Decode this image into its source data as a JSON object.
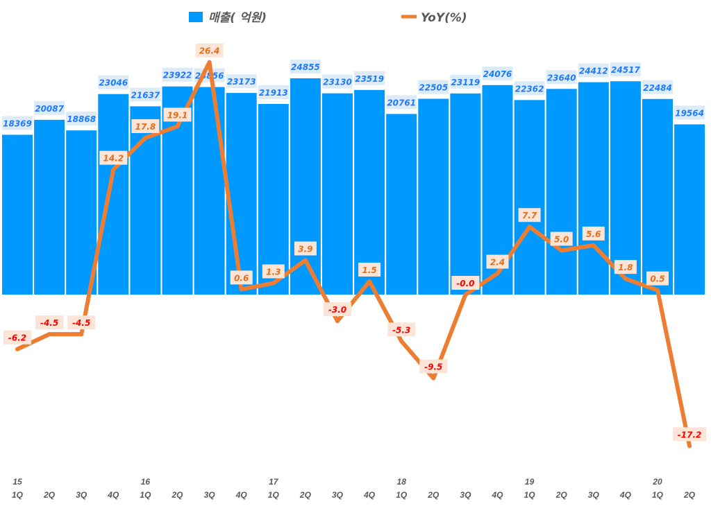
{
  "chart_data": {
    "type": "bar+line",
    "categories": [
      "1Q",
      "2Q",
      "3Q",
      "4Q",
      "1Q",
      "2Q",
      "3Q",
      "4Q",
      "1Q",
      "2Q",
      "3Q",
      "4Q",
      "1Q",
      "2Q",
      "3Q",
      "4Q",
      "1Q",
      "2Q",
      "3Q",
      "4Q",
      "1Q",
      "2Q"
    ],
    "year_labels": [
      "15",
      "",
      "",
      "",
      "16",
      "",
      "",
      "",
      "17",
      "",
      "",
      "",
      "18",
      "",
      "",
      "",
      "19",
      "",
      "",
      "",
      "20",
      ""
    ],
    "series": [
      {
        "name": "매출( 억원)",
        "type": "bar",
        "axis": "primary",
        "color": "#0099FF",
        "values": [
          18369,
          20087,
          18868,
          23046,
          21637,
          23922,
          23856,
          23173,
          21913,
          24855,
          23130,
          23519,
          20761,
          22505,
          23119,
          24076,
          22362,
          23640,
          24412,
          24517,
          22484,
          19564
        ],
        "labels": [
          "18369",
          "20087",
          "18868",
          "23046",
          "21637",
          "23922",
          "23856",
          "23173",
          "21913",
          "24855",
          "23130",
          "23519",
          "20761",
          "22505",
          "23119",
          "24076",
          "22362",
          "23640",
          "24412",
          "24517",
          "22484",
          "19564"
        ]
      },
      {
        "name": "YoY(%)",
        "type": "line",
        "axis": "secondary",
        "color": "#ED7D31",
        "values": [
          -6.2,
          -4.5,
          -4.5,
          14.2,
          17.8,
          19.1,
          26.4,
          0.6,
          1.3,
          3.9,
          -3.0,
          1.5,
          -5.3,
          -9.5,
          -0.0,
          2.4,
          7.7,
          5.0,
          5.6,
          1.8,
          0.5,
          -17.2
        ],
        "labels": [
          "-6.2",
          "-4.5",
          "-4.5",
          "14.2",
          "17.8",
          "19.1",
          "26.4",
          "0.6",
          "1.3",
          "3.9",
          "-3.0",
          "1.5",
          "-5.3",
          "-9.5",
          "-0.0",
          "2.4",
          "7.7",
          "5.0",
          "5.6",
          "1.8",
          "0.5",
          "-17.2"
        ]
      }
    ],
    "legend_position": "top",
    "grid": false,
    "colors": {
      "bar_label": "#1E7BFF",
      "bar_label_bg": "#DDEBF7",
      "yoy_pos": "#E07020",
      "yoy_neg": "#FF0000",
      "yoy_label_bg": "#FCE4D6"
    }
  }
}
